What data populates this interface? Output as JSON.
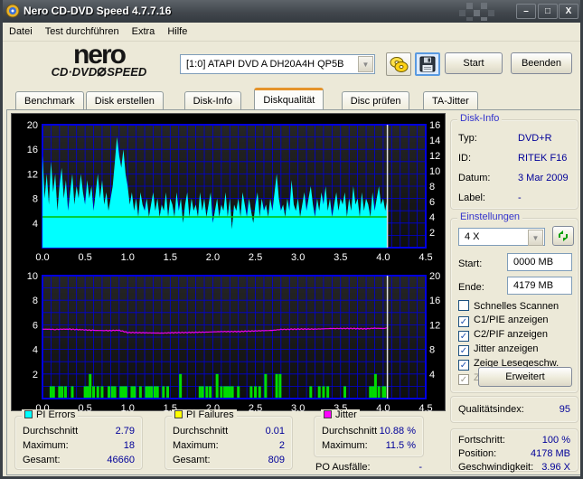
{
  "titlebar": {
    "title": "Nero CD-DVD Speed 4.7.7.16",
    "min": "–",
    "max": "□",
    "close": "X"
  },
  "menu": {
    "items": [
      "Datei",
      "Test durchführen",
      "Extra",
      "Hilfe"
    ]
  },
  "toolbar": {
    "logo_line1": "nero",
    "logo_line2a": "CD·DVD",
    "logo_line2b": "SPEED",
    "drive_selected": "[1:0]   ATAPI DVD A  DH20A4H QP5B",
    "start_label": "Start",
    "quit_label": "Beenden"
  },
  "tabs": {
    "items": [
      "Benchmark",
      "Disk erstellen",
      "Disk-Info",
      "Diskqualität",
      "Disc prüfen",
      "TA-Jitter"
    ],
    "active_index": 3
  },
  "disk_info": {
    "caption": "Disk-Info",
    "rows": [
      {
        "label": "Typ:",
        "value": "DVD+R"
      },
      {
        "label": "ID:",
        "value": "RITEK F16"
      },
      {
        "label": "Datum:",
        "value": "3 Mar 2009"
      },
      {
        "label": "Label:",
        "value": "-"
      }
    ]
  },
  "settings": {
    "caption": "Einstellungen",
    "speed_selected": "4 X",
    "start_label": "Start:",
    "start_value": "0000 MB",
    "end_label": "Ende:",
    "end_value": "4179 MB",
    "advanced_label": "Erweitert",
    "checkboxes": [
      {
        "label": "Schnelles Scannen",
        "checked": false,
        "disabled": false
      },
      {
        "label": "C1/PIE anzeigen",
        "checked": true,
        "disabled": false
      },
      {
        "label": "C2/PIF anzeigen",
        "checked": true,
        "disabled": false
      },
      {
        "label": "Jitter anzeigen",
        "checked": true,
        "disabled": false
      },
      {
        "label": "Zeige Lesegeschw.",
        "checked": true,
        "disabled": false
      },
      {
        "label": "Zeige Schreibgeschw.",
        "checked": true,
        "disabled": true
      }
    ]
  },
  "stats": {
    "pi_errors": {
      "caption": "PI Errors",
      "legend_color": "#00ffff",
      "rows": [
        {
          "label": "Durchschnitt",
          "value": "2.79"
        },
        {
          "label": "Maximum:",
          "value": "18"
        },
        {
          "label": "Gesamt:",
          "value": "46660"
        }
      ]
    },
    "pi_failures": {
      "caption": "PI Failures",
      "legend_color": "#ffff00",
      "rows": [
        {
          "label": "Durchschnitt",
          "value": "0.01"
        },
        {
          "label": "Maximum:",
          "value": "2"
        },
        {
          "label": "Gesamt:",
          "value": "809"
        }
      ]
    },
    "jitter": {
      "caption": "Jitter",
      "legend_color": "#ff00ff",
      "rows": [
        {
          "label": "Durchschnitt",
          "value": "10.88 %"
        },
        {
          "label": "Maximum:",
          "value": "11.5 %"
        }
      ]
    },
    "po_failures": {
      "label": "PO Ausfälle:",
      "value": "-"
    },
    "quality": {
      "label": "Qualitätsindex:",
      "value": "95"
    },
    "progress": {
      "rows": [
        {
          "label": "Fortschritt:",
          "value": "100 %"
        },
        {
          "label": "Position:",
          "value": "4178 MB"
        },
        {
          "label": "Geschwindigkeit:",
          "value": "3.96 X"
        }
      ]
    }
  },
  "chart_data": [
    {
      "type": "area",
      "name": "pi-errors-scan",
      "xlim": [
        0,
        4.5
      ],
      "ylim_left": [
        0,
        20
      ],
      "ylim_right": [
        0,
        16
      ],
      "x_ticks": [
        "0.0",
        "0.5",
        "1.0",
        "1.5",
        "2.0",
        "2.5",
        "3.0",
        "3.5",
        "4.0",
        "4.5"
      ],
      "left_ticks": [
        4,
        8,
        12,
        16,
        20
      ],
      "right_ticks": [
        2,
        4,
        6,
        8,
        10,
        12,
        14,
        16
      ],
      "grid": {
        "x_step": 0.1,
        "y_step_left": 2,
        "color": "#0000d8"
      },
      "series_color": "#00ffff",
      "x_start": 0,
      "x_step": 0.025,
      "x_end": 4.05,
      "values": [
        15,
        8,
        12,
        7,
        14,
        9,
        12,
        6,
        10,
        13,
        8,
        11,
        6,
        9,
        12,
        7,
        10,
        8,
        12,
        9,
        7,
        11,
        8,
        10,
        6,
        9,
        12,
        8,
        11,
        7,
        9,
        6,
        8,
        10,
        14,
        18,
        15,
        13,
        16,
        12,
        10,
        7,
        9,
        6,
        8,
        5,
        9,
        7,
        6,
        8,
        5,
        7,
        9,
        6,
        8,
        5,
        7,
        6,
        9,
        5,
        8,
        7,
        5,
        9,
        6,
        8,
        4,
        7,
        9,
        5,
        8,
        6,
        7,
        5,
        9,
        6,
        8,
        5,
        7,
        9,
        4,
        6,
        8,
        5,
        7,
        6,
        9,
        5,
        8,
        3,
        7,
        6,
        8,
        5,
        9,
        7,
        5,
        8,
        6,
        4,
        7,
        9,
        5,
        8,
        6,
        7,
        5,
        8,
        6,
        9,
        12,
        8,
        6,
        7,
        5,
        8,
        6,
        11,
        7,
        6,
        8,
        5,
        7,
        9,
        6,
        8,
        10,
        7,
        5,
        8,
        6,
        9,
        7,
        10,
        6,
        8,
        5,
        7,
        9,
        6,
        8,
        7,
        9,
        5,
        8,
        6,
        10,
        7,
        8,
        5,
        9,
        6,
        8,
        7,
        5,
        9,
        6,
        8,
        10,
        7,
        8,
        6,
        8
      ],
      "speed_line": {
        "value_right_axis": 4,
        "color": "#00c000"
      },
      "cursor_x": 4.05,
      "cursor_color": "#e0e0e0"
    },
    {
      "type": "bar+line",
      "name": "pi-failures-jitter",
      "xlim": [
        0,
        4.5
      ],
      "ylim_left": [
        0,
        10
      ],
      "ylim_right": [
        0,
        20
      ],
      "x_ticks": [
        "0.0",
        "0.5",
        "1.0",
        "1.5",
        "2.0",
        "2.5",
        "3.0",
        "3.5",
        "4.0",
        "4.5"
      ],
      "left_ticks": [
        2,
        4,
        6,
        8,
        10
      ],
      "right_ticks": [
        4,
        8,
        12,
        16,
        20
      ],
      "grid": {
        "x_step": 0.1,
        "y_step_left": 1,
        "color": "#0000d8"
      },
      "bar_color": "#00dd00",
      "bars": [
        [
          0.1,
          1
        ],
        [
          0.13,
          1
        ],
        [
          0.2,
          1
        ],
        [
          0.23,
          1
        ],
        [
          0.27,
          1
        ],
        [
          0.35,
          1
        ],
        [
          0.5,
          1
        ],
        [
          0.53,
          1
        ],
        [
          0.56,
          2
        ],
        [
          0.6,
          1
        ],
        [
          0.65,
          1
        ],
        [
          0.7,
          1
        ],
        [
          0.78,
          1
        ],
        [
          0.82,
          1
        ],
        [
          0.85,
          1
        ],
        [
          0.92,
          1
        ],
        [
          0.95,
          1
        ],
        [
          0.98,
          1
        ],
        [
          1.05,
          1
        ],
        [
          1.08,
          1
        ],
        [
          1.15,
          1
        ],
        [
          1.22,
          1
        ],
        [
          1.25,
          1
        ],
        [
          1.28,
          1
        ],
        [
          1.32,
          1
        ],
        [
          1.35,
          1
        ],
        [
          1.42,
          1
        ],
        [
          1.47,
          1
        ],
        [
          1.62,
          2
        ],
        [
          1.85,
          1
        ],
        [
          1.88,
          1
        ],
        [
          1.93,
          1
        ],
        [
          1.97,
          1
        ],
        [
          2.05,
          2
        ],
        [
          2.1,
          1
        ],
        [
          2.14,
          1
        ],
        [
          2.17,
          1
        ],
        [
          2.2,
          1
        ],
        [
          2.23,
          1
        ],
        [
          2.3,
          1
        ],
        [
          2.45,
          1
        ],
        [
          2.5,
          1
        ],
        [
          2.55,
          1
        ],
        [
          2.62,
          2
        ],
        [
          2.75,
          2
        ],
        [
          2.79,
          2
        ],
        [
          3.15,
          1
        ],
        [
          3.25,
          1
        ],
        [
          3.3,
          1
        ],
        [
          3.35,
          1
        ],
        [
          3.55,
          1
        ],
        [
          3.85,
          1
        ],
        [
          3.88,
          1
        ],
        [
          3.91,
          2
        ],
        [
          3.95,
          1
        ],
        [
          4.0,
          1
        ],
        [
          4.02,
          1
        ]
      ],
      "jitter_line": {
        "color": "#ee00ee",
        "axis": "right",
        "points": [
          [
            0,
            11.3
          ],
          [
            0.15,
            11.25
          ],
          [
            0.3,
            11.3
          ],
          [
            0.45,
            11.2
          ],
          [
            0.6,
            11.1
          ],
          [
            0.75,
            11.05
          ],
          [
            0.9,
            11.1
          ],
          [
            1.0,
            10.75
          ],
          [
            1.2,
            10.7
          ],
          [
            1.4,
            10.65
          ],
          [
            1.5,
            10.7
          ],
          [
            1.7,
            10.75
          ],
          [
            1.9,
            10.8
          ],
          [
            2.1,
            10.9
          ],
          [
            2.3,
            10.9
          ],
          [
            2.5,
            11.0
          ],
          [
            2.7,
            11.1
          ],
          [
            2.8,
            11.25
          ],
          [
            3.0,
            11.3
          ],
          [
            3.2,
            11.3
          ],
          [
            3.4,
            11.4
          ],
          [
            3.6,
            11.4
          ],
          [
            3.8,
            11.35
          ],
          [
            3.9,
            11.45
          ],
          [
            4.0,
            11.4
          ],
          [
            4.05,
            11.5
          ]
        ]
      },
      "cursor_x": 4.05,
      "cursor_color": "#e0e0e0"
    }
  ]
}
